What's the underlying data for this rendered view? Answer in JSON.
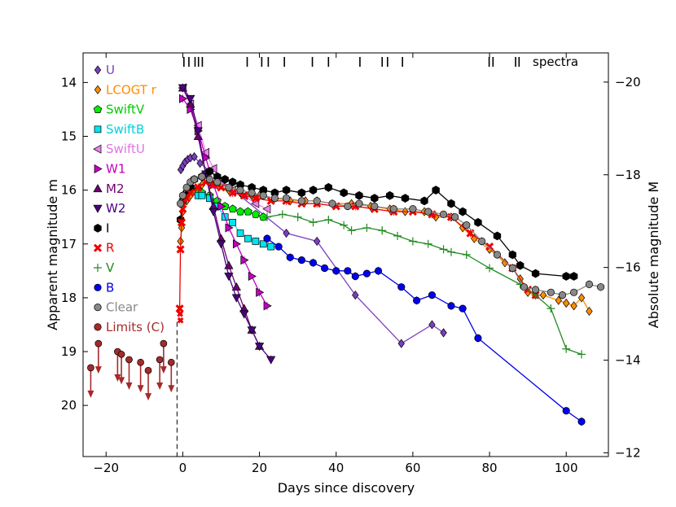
{
  "chart_data": {
    "type": "scatter",
    "title": "",
    "xlabel": "Days since discovery",
    "ylabel": "Apparent magnitude m",
    "y2label": "Absolute magnitude M",
    "xlim": [
      -26,
      111
    ],
    "ylim": [
      20.95,
      13.45
    ],
    "y2lim": [
      -11.92,
      -20.63
    ],
    "xticks": [
      -20,
      0,
      20,
      40,
      60,
      80,
      100
    ],
    "xtick_labels": [
      "−20",
      "0",
      "20",
      "40",
      "60",
      "80",
      "100"
    ],
    "yticks": [
      14,
      15,
      16,
      17,
      18,
      19,
      20
    ],
    "ytick_labels": [
      "14",
      "15",
      "16",
      "17",
      "18",
      "19",
      "20"
    ],
    "y2ticks": [
      -20,
      -18,
      -16,
      -14,
      -12
    ],
    "y2tick_labels": [
      "−20",
      "−18",
      "−16",
      "−14",
      "−12"
    ],
    "explosion_day": -1.5,
    "spectra_label": "spectra",
    "spectra_days": [
      0.3,
      1.6,
      3.2,
      4.1,
      5.1,
      16.8,
      20.6,
      22.3,
      26.5,
      33.8,
      38.0,
      46.2,
      52.0,
      53.4,
      57.3,
      79.9,
      80.9,
      86.8,
      87.7
    ],
    "series": [
      {
        "name": "U",
        "color": "#7b3fbf",
        "marker": "diamond",
        "points": [
          [
            -0.5,
            15.62
          ],
          [
            0,
            15.55
          ],
          [
            0.6,
            15.48
          ],
          [
            1.3,
            15.43
          ],
          [
            2,
            15.4
          ],
          [
            3,
            15.38
          ],
          [
            4.5,
            15.5
          ],
          [
            27,
            16.8
          ],
          [
            35,
            16.95
          ],
          [
            45,
            17.95
          ],
          [
            57,
            18.85
          ],
          [
            65,
            18.5
          ],
          [
            68,
            18.65
          ]
        ]
      },
      {
        "name": "LCOGT r",
        "color": "#ff8c00",
        "marker": "diamond",
        "points": [
          [
            -0.6,
            16.95
          ],
          [
            -0.3,
            16.7
          ],
          [
            0,
            16.4
          ],
          [
            1,
            16.2
          ],
          [
            2,
            16.1
          ],
          [
            3,
            16.0
          ],
          [
            5,
            15.9
          ],
          [
            7,
            15.85
          ],
          [
            9,
            15.9
          ],
          [
            12,
            16.0
          ],
          [
            15,
            16.05
          ],
          [
            18,
            16.1
          ],
          [
            20,
            16.1
          ],
          [
            24,
            16.15
          ],
          [
            28,
            16.2
          ],
          [
            32,
            16.2
          ],
          [
            35,
            16.2
          ],
          [
            39,
            16.25
          ],
          [
            44,
            16.25
          ],
          [
            49,
            16.3
          ],
          [
            54,
            16.35
          ],
          [
            58,
            16.4
          ],
          [
            63,
            16.4
          ],
          [
            66,
            16.5
          ],
          [
            70,
            16.5
          ],
          [
            73,
            16.7
          ],
          [
            76,
            16.9
          ],
          [
            80,
            17.1
          ],
          [
            84,
            17.35
          ],
          [
            86,
            17.45
          ],
          [
            88,
            17.65
          ],
          [
            90,
            17.9
          ],
          [
            92,
            17.95
          ],
          [
            94,
            17.95
          ],
          [
            98,
            18.05
          ],
          [
            100,
            18.1
          ],
          [
            102,
            18.15
          ],
          [
            104,
            18.0
          ],
          [
            106,
            18.25
          ]
        ]
      },
      {
        "name": "SwiftV",
        "color": "#00ee00",
        "marker": "pentagon",
        "points": [
          [
            4,
            16.0
          ],
          [
            5,
            16.05
          ],
          [
            7,
            16.1
          ],
          [
            9,
            16.2
          ],
          [
            11,
            16.3
          ],
          [
            13,
            16.35
          ],
          [
            15,
            16.4
          ],
          [
            17,
            16.4
          ],
          [
            19,
            16.45
          ],
          [
            21,
            16.5
          ]
        ]
      },
      {
        "name": "SwiftB",
        "color": "#00e5ee",
        "marker": "square",
        "points": [
          [
            4,
            16.1
          ],
          [
            5,
            16.1
          ],
          [
            7,
            16.15
          ],
          [
            9,
            16.3
          ],
          [
            11,
            16.5
          ],
          [
            13,
            16.6
          ],
          [
            15,
            16.8
          ],
          [
            17,
            16.9
          ],
          [
            19,
            16.95
          ],
          [
            21,
            17.0
          ],
          [
            23,
            17.05
          ]
        ]
      },
      {
        "name": "SwiftU",
        "color": "#ee82ee",
        "marker": "triangle-left",
        "points": [
          [
            0,
            14.1
          ],
          [
            2,
            14.4
          ],
          [
            4,
            14.8
          ],
          [
            6,
            15.3
          ],
          [
            8,
            15.6
          ],
          [
            10,
            15.85
          ],
          [
            13,
            16.0
          ],
          [
            16,
            16.1
          ],
          [
            19,
            16.25
          ],
          [
            22,
            16.35
          ]
        ]
      },
      {
        "name": "W1",
        "color": "#c000c0",
        "marker": "triangle-right",
        "points": [
          [
            0,
            14.3
          ],
          [
            2,
            14.5
          ],
          [
            4,
            14.9
          ],
          [
            6,
            15.4
          ],
          [
            8,
            15.9
          ],
          [
            10,
            16.3
          ],
          [
            12,
            16.7
          ],
          [
            14,
            17.0
          ],
          [
            16,
            17.3
          ],
          [
            18,
            17.6
          ],
          [
            20,
            17.9
          ],
          [
            22,
            18.15
          ]
        ]
      },
      {
        "name": "M2",
        "color": "#700070",
        "marker": "triangle-up",
        "points": [
          [
            0,
            14.1
          ],
          [
            2,
            14.4
          ],
          [
            4,
            15.0
          ],
          [
            6,
            15.7
          ],
          [
            8,
            16.3
          ],
          [
            10,
            16.9
          ],
          [
            12,
            17.4
          ],
          [
            14,
            17.8
          ],
          [
            16,
            18.2
          ],
          [
            18,
            18.6
          ],
          [
            20,
            18.9
          ]
        ]
      },
      {
        "name": "W2",
        "color": "#4b0082",
        "marker": "triangle-down",
        "points": [
          [
            0,
            14.1
          ],
          [
            2,
            14.3
          ],
          [
            4,
            14.9
          ],
          [
            6,
            15.7
          ],
          [
            8,
            16.4
          ],
          [
            10,
            17.0
          ],
          [
            12,
            17.6
          ],
          [
            14,
            18.0
          ],
          [
            16,
            18.3
          ],
          [
            18,
            18.6
          ],
          [
            20,
            18.9
          ],
          [
            23,
            19.15
          ]
        ]
      },
      {
        "name": "I",
        "color": "#000000",
        "marker": "hexagon",
        "points": [
          [
            -0.6,
            16.55
          ],
          [
            0,
            16.2
          ],
          [
            1,
            16.05
          ],
          [
            2,
            15.95
          ],
          [
            3,
            15.8
          ],
          [
            5,
            15.75
          ],
          [
            7,
            15.65
          ],
          [
            9,
            15.75
          ],
          [
            11,
            15.8
          ],
          [
            13,
            15.85
          ],
          [
            15,
            15.9
          ],
          [
            18,
            15.95
          ],
          [
            21,
            16.0
          ],
          [
            24,
            16.05
          ],
          [
            27,
            16.0
          ],
          [
            31,
            16.05
          ],
          [
            34,
            16.0
          ],
          [
            38,
            15.95
          ],
          [
            42,
            16.05
          ],
          [
            46,
            16.1
          ],
          [
            50,
            16.15
          ],
          [
            54,
            16.1
          ],
          [
            58,
            16.15
          ],
          [
            63,
            16.2
          ],
          [
            66,
            16.0
          ],
          [
            70,
            16.25
          ],
          [
            73,
            16.4
          ],
          [
            77,
            16.6
          ],
          [
            82,
            16.85
          ],
          [
            86,
            17.2
          ],
          [
            88,
            17.4
          ],
          [
            92,
            17.55
          ],
          [
            100,
            17.6
          ],
          [
            102,
            17.6
          ]
        ]
      },
      {
        "name": "R",
        "color": "#ee0000",
        "marker": "cross",
        "points": [
          [
            -0.8,
            18.2
          ],
          [
            -0.6,
            17.1
          ],
          [
            -0.3,
            16.6
          ],
          [
            0,
            16.35
          ],
          [
            1,
            16.15
          ],
          [
            2,
            16.05
          ],
          [
            4,
            15.95
          ],
          [
            6,
            15.85
          ],
          [
            8,
            15.9
          ],
          [
            10,
            15.95
          ],
          [
            13,
            16.05
          ],
          [
            16,
            16.1
          ],
          [
            19,
            16.15
          ],
          [
            23,
            16.2
          ],
          [
            27,
            16.2
          ],
          [
            31,
            16.25
          ],
          [
            35,
            16.25
          ],
          [
            40,
            16.3
          ],
          [
            45,
            16.3
          ],
          [
            50,
            16.35
          ],
          [
            55,
            16.4
          ],
          [
            60,
            16.4
          ],
          [
            65,
            16.45
          ],
          [
            70,
            16.5
          ],
          [
            75,
            16.8
          ],
          [
            80,
            17.05
          ],
          [
            86,
            17.45
          ],
          [
            90,
            17.85
          ],
          [
            92,
            17.95
          ]
        ]
      },
      {
        "name": "V",
        "color": "#228b22",
        "marker": "plus",
        "points": [
          [
            22,
            16.5
          ],
          [
            26,
            16.45
          ],
          [
            30,
            16.5
          ],
          [
            34,
            16.6
          ],
          [
            38,
            16.55
          ],
          [
            42,
            16.65
          ],
          [
            44,
            16.75
          ],
          [
            48,
            16.7
          ],
          [
            52,
            16.75
          ],
          [
            56,
            16.85
          ],
          [
            60,
            16.95
          ],
          [
            64,
            17.0
          ],
          [
            68,
            17.1
          ],
          [
            70,
            17.15
          ],
          [
            74,
            17.2
          ],
          [
            80,
            17.45
          ],
          [
            88,
            17.75
          ],
          [
            92,
            17.95
          ],
          [
            96,
            18.2
          ],
          [
            100,
            18.95
          ],
          [
            104,
            19.05
          ]
        ]
      },
      {
        "name": "B",
        "color": "#0000ee",
        "marker": "circle",
        "points": [
          [
            22,
            16.9
          ],
          [
            25,
            17.05
          ],
          [
            28,
            17.25
          ],
          [
            31,
            17.3
          ],
          [
            34,
            17.35
          ],
          [
            37,
            17.45
          ],
          [
            40,
            17.5
          ],
          [
            43,
            17.5
          ],
          [
            45,
            17.6
          ],
          [
            48,
            17.55
          ],
          [
            51,
            17.5
          ],
          [
            57,
            17.8
          ],
          [
            61,
            18.05
          ],
          [
            65,
            17.95
          ],
          [
            70,
            18.15
          ],
          [
            73,
            18.2
          ],
          [
            77,
            18.75
          ],
          [
            100,
            20.1
          ],
          [
            104,
            20.3
          ]
        ]
      },
      {
        "name": "Clear",
        "color": "#888888",
        "marker": "circle",
        "points": [
          [
            -0.6,
            16.25
          ],
          [
            0,
            16.1
          ],
          [
            1,
            15.95
          ],
          [
            2,
            15.85
          ],
          [
            3,
            15.8
          ],
          [
            5,
            15.75
          ],
          [
            7,
            15.8
          ],
          [
            9,
            15.85
          ],
          [
            12,
            15.95
          ],
          [
            15,
            16.0
          ],
          [
            18,
            16.05
          ],
          [
            21,
            16.1
          ],
          [
            24,
            16.15
          ],
          [
            27,
            16.15
          ],
          [
            31,
            16.2
          ],
          [
            35,
            16.2
          ],
          [
            39,
            16.25
          ],
          [
            43,
            16.3
          ],
          [
            46,
            16.25
          ],
          [
            50,
            16.3
          ],
          [
            55,
            16.35
          ],
          [
            60,
            16.35
          ],
          [
            64,
            16.4
          ],
          [
            68,
            16.45
          ],
          [
            71,
            16.5
          ],
          [
            74,
            16.65
          ],
          [
            78,
            16.95
          ],
          [
            82,
            17.2
          ],
          [
            86,
            17.45
          ],
          [
            89,
            17.8
          ],
          [
            92,
            17.85
          ],
          [
            96,
            17.9
          ],
          [
            99,
            17.95
          ],
          [
            102,
            17.9
          ],
          [
            106,
            17.75
          ],
          [
            109,
            17.8
          ]
        ]
      }
    ],
    "limits": {
      "name": "Limits (C)",
      "color": "#a52a2a",
      "points": [
        [
          -24,
          19.3
        ],
        [
          -22,
          18.85
        ],
        [
          -17,
          19.0
        ],
        [
          -16,
          19.05
        ],
        [
          -14,
          19.15
        ],
        [
          -11,
          19.2
        ],
        [
          -9,
          19.35
        ],
        [
          -6,
          19.15
        ],
        [
          -5,
          18.85
        ],
        [
          -3,
          19.2
        ]
      ]
    },
    "discovery_points": [
      [
        -0.8,
        18.2
      ],
      [
        -0.7,
        18.3
      ],
      [
        -0.6,
        18.42
      ]
    ]
  }
}
